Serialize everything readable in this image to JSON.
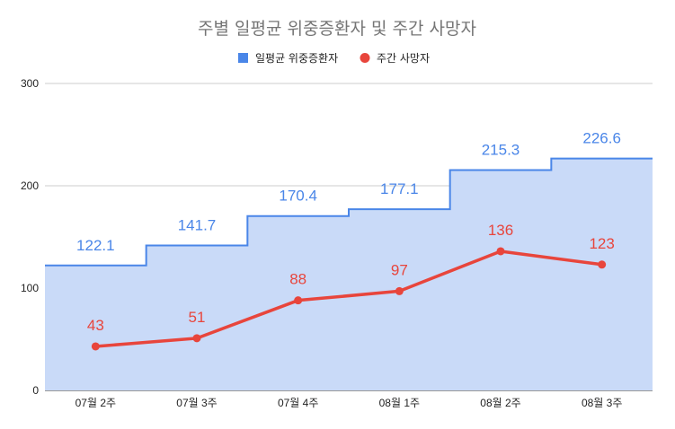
{
  "chart_data": {
    "type": "line",
    "title": "주별 일평균 위중증환자 및 주간 사망자",
    "categories": [
      "07월 2주",
      "07월 3주",
      "07월 4주",
      "08월 1주",
      "08월 2주",
      "08월 3주"
    ],
    "yticks": [
      "0",
      "100",
      "200",
      "300"
    ],
    "ylim": [
      0,
      300
    ],
    "grid": true,
    "legend_position": "top",
    "series": [
      {
        "name": "일평균 위중증환자",
        "type": "stepped-area",
        "color": "#4a86e8",
        "fill": "#c9daf8",
        "values": [
          122.1,
          141.7,
          170.4,
          177.1,
          215.3,
          226.6
        ],
        "labels": [
          "122.1",
          "141.7",
          "170.4",
          "177.1",
          "215.3",
          "226.6"
        ]
      },
      {
        "name": "주간 사망자",
        "type": "line",
        "color": "#e8453c",
        "values": [
          43,
          51,
          88,
          97,
          136,
          123
        ],
        "labels": [
          "43",
          "51",
          "88",
          "97",
          "136",
          "123"
        ]
      }
    ]
  }
}
